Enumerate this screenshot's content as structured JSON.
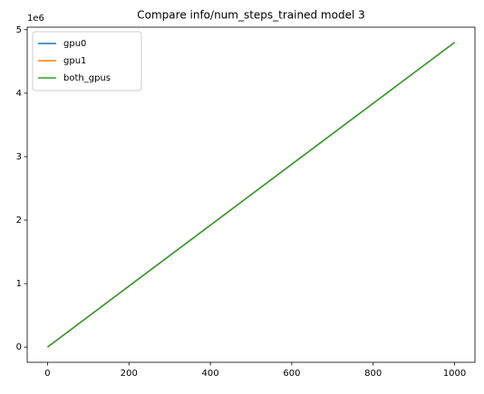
{
  "chart_data": {
    "type": "line",
    "title": "Compare info/num_steps_trained model 3",
    "y_offset_label": "1e6",
    "x": [
      0,
      1000
    ],
    "series": [
      {
        "name": "gpu0",
        "color": "#1f77b4",
        "values": [
          0,
          4800000
        ]
      },
      {
        "name": "gpu1",
        "color": "#ff7f0e",
        "values": [
          0,
          4800000
        ]
      },
      {
        "name": "both_gpus",
        "color": "#2ca02c",
        "values": [
          0,
          4800000
        ]
      }
    ],
    "xlim": [
      -50,
      1050
    ],
    "xticks": [
      0,
      200,
      400,
      600,
      800,
      1000
    ],
    "ylim": [
      -240000,
      5040000
    ],
    "yticks": [
      {
        "value": 0,
        "label": "0"
      },
      {
        "value": 1000000,
        "label": "1"
      },
      {
        "value": 2000000,
        "label": "2"
      },
      {
        "value": 3000000,
        "label": "3"
      },
      {
        "value": 4000000,
        "label": "4"
      },
      {
        "value": 5000000,
        "label": "5"
      }
    ],
    "legend": "upper left",
    "grid": false
  }
}
